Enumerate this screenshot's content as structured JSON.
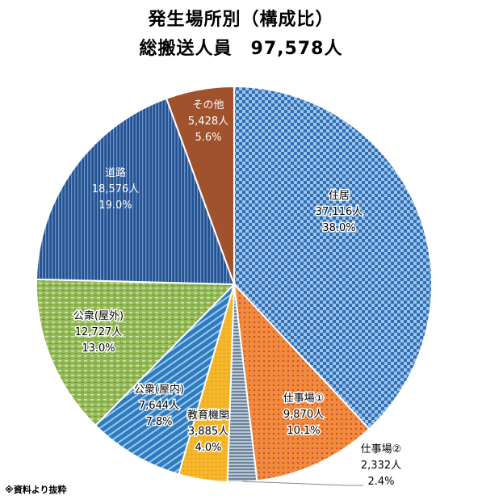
{
  "title_line1": "発生場所別（構成比）",
  "title_line2": "総搬送人員　97,578人",
  "note": "※資料より抜粋",
  "chart_data": {
    "type": "pie",
    "title": "発生場所別（構成比）",
    "subtitle": "総搬送人員　97,578人",
    "total": 97578,
    "slices": [
      {
        "name": "住居",
        "count": "37,116人",
        "percent": "38.0%",
        "value": 37116,
        "pct": 38.0,
        "color": "#2f6fb5",
        "pattern": "check-blue"
      },
      {
        "name": "仕事場①",
        "count": "9,870人",
        "percent": "10.1%",
        "value": 9870,
        "pct": 10.1,
        "color": "#e8863d",
        "pattern": "dots-orange"
      },
      {
        "name": "仕事場②",
        "count": "2,332人",
        "percent": "2.4%",
        "value": 2332,
        "pct": 2.4,
        "color": "#8fa3b8",
        "pattern": "hatch-grey"
      },
      {
        "name": "教育機関",
        "count": "3,885人",
        "percent": "4.0%",
        "value": 3885,
        "pct": 4.0,
        "color": "#f2b52c",
        "pattern": "dots-yellow"
      },
      {
        "name": "公衆(屋内)",
        "count": "7,644人",
        "percent": "7.8%",
        "value": 7644,
        "pct": 7.8,
        "color": "#2e7bbf",
        "pattern": "diag-blue"
      },
      {
        "name": "公衆(屋外)",
        "count": "12,727人",
        "percent": "13.0%",
        "value": 12727,
        "pct": 13.0,
        "color": "#8cb34a",
        "pattern": "dash-green"
      },
      {
        "name": "道路",
        "count": "18,576人",
        "percent": "19.0%",
        "value": 18576,
        "pct": 19.0,
        "color": "#24518f",
        "pattern": "vlines-navy"
      },
      {
        "name": "その他",
        "count": "5,428人",
        "percent": "5.6%",
        "value": 5428,
        "pct": 5.6,
        "color": "#a0522d",
        "pattern": "solid-brown"
      }
    ]
  }
}
